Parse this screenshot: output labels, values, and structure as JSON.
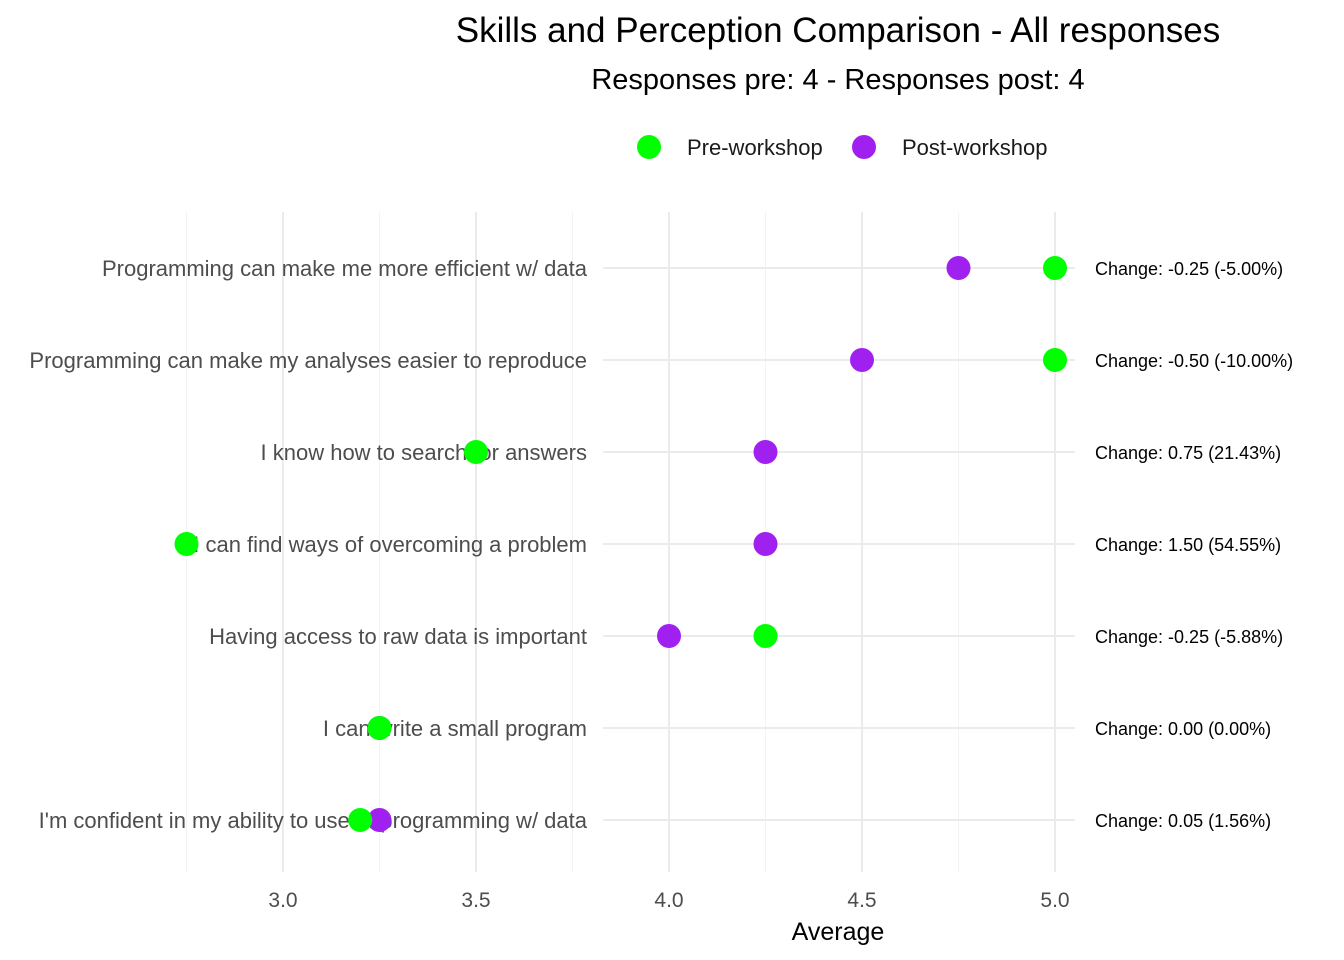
{
  "chart_data": {
    "type": "scatter",
    "title": "Skills and Perception Comparison - All responses",
    "subtitle": "Responses pre: 4 - Responses post: 4",
    "xlabel": "Average",
    "ylabel": "",
    "xlim": [
      2.75,
      5.0
    ],
    "xticks": [
      "3.0",
      "3.5",
      "4.0",
      "4.5",
      "5.0"
    ],
    "legend_position": "top",
    "categories": [
      "Programming can make me more efficient w/ data",
      "Programming can make my analyses easier to reproduce",
      "I know how to search for answers",
      "I can find ways of overcoming a problem",
      "Having access to raw data is important",
      "I can write a small program",
      "I'm confident in my ability to use of programming w/ data"
    ],
    "series": [
      {
        "name": "Pre-workshop",
        "color": "#00ff00",
        "values": [
          5.0,
          5.0,
          3.5,
          2.75,
          4.25,
          3.25,
          3.2
        ]
      },
      {
        "name": "Post-workshop",
        "color": "#a020f0",
        "values": [
          4.75,
          4.5,
          4.25,
          4.25,
          4.0,
          3.25,
          3.25
        ]
      }
    ],
    "annotations": [
      "Change: -0.25 (-5.00%)",
      "Change: -0.50 (-10.00%)",
      "Change: 0.75 (21.43%)",
      "Change: 1.50 (54.55%)",
      "Change: -0.25 (-5.88%)",
      "Change: 0.00 (0.00%)",
      "Change: 0.05 (1.56%)"
    ],
    "grid": true
  }
}
